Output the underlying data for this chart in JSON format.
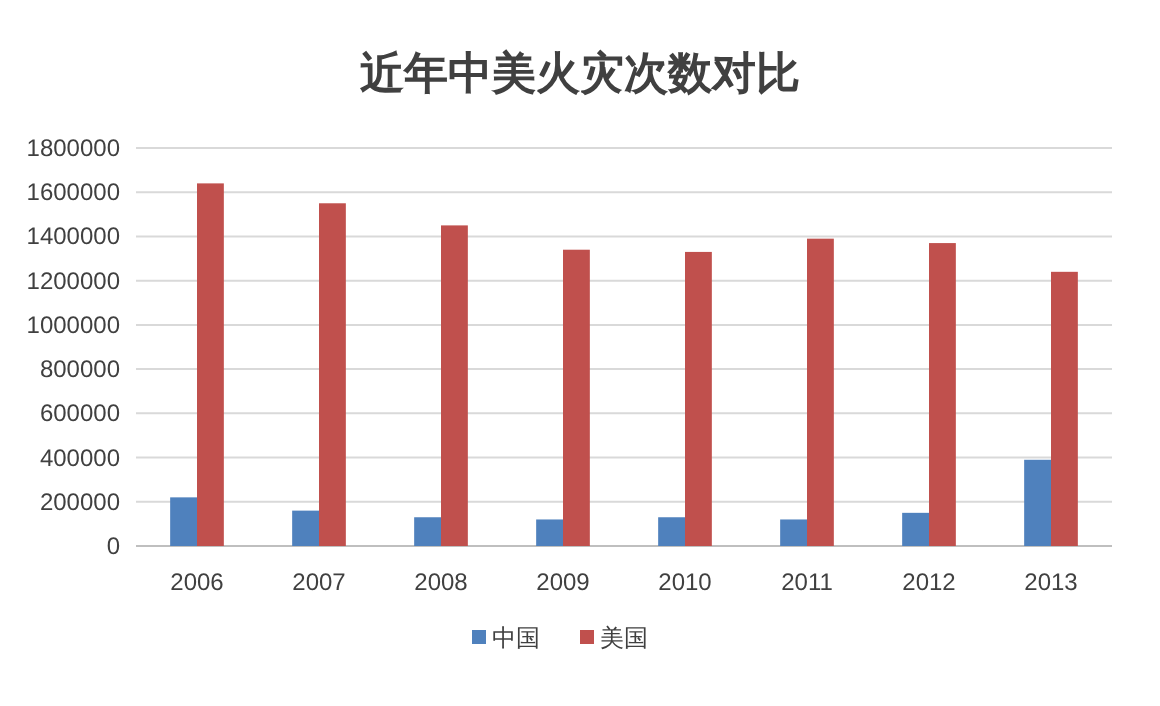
{
  "chart_data": {
    "type": "bar",
    "title": "近年中美火灾次数对比",
    "categories": [
      "2006",
      "2007",
      "2008",
      "2009",
      "2010",
      "2011",
      "2012",
      "2013"
    ],
    "series": [
      {
        "name": "中国",
        "color": "#4f81bd",
        "values": [
          220000,
          160000,
          130000,
          120000,
          130000,
          120000,
          150000,
          390000
        ]
      },
      {
        "name": "美国",
        "color": "#c0504d",
        "values": [
          1640000,
          1550000,
          1450000,
          1340000,
          1330000,
          1390000,
          1370000,
          1240000
        ]
      }
    ],
    "ylim": [
      0,
      1800000
    ],
    "yticks": [
      0,
      200000,
      400000,
      600000,
      800000,
      1000000,
      1200000,
      1400000,
      1600000,
      1800000
    ],
    "grid": "y",
    "legend": "bottom"
  }
}
